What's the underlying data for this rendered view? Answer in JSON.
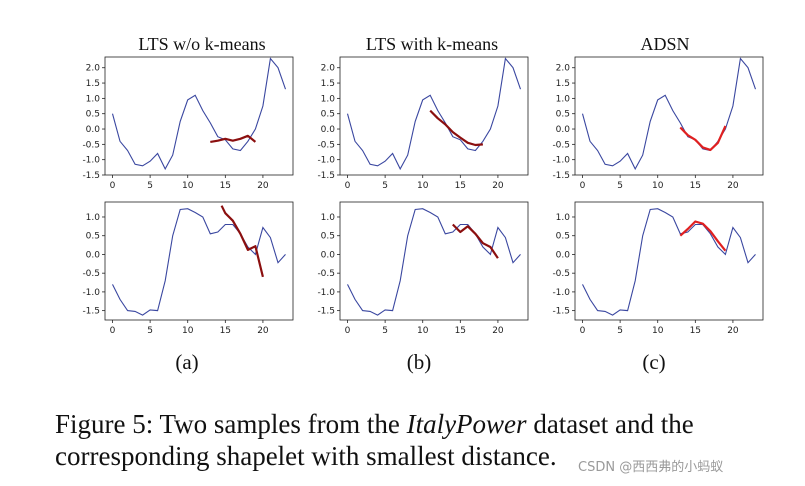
{
  "figure": {
    "caption_prefix": "Figure 5: Two samples from the ",
    "caption_dataset": "ItalyPower",
    "caption_suffix": " dataset and the corresponding shapelet with smallest distance.",
    "watermark": "CSDN @西西弗的小蚂蚁"
  },
  "colors": {
    "series": "#3a47a0",
    "shapelet_dark": "#8b0f0f",
    "shapelet_red": "#e02020"
  },
  "columns": [
    {
      "title": "LTS w/o k-means",
      "label": "(a)"
    },
    {
      "title": "LTS with k-means",
      "label": "(b)"
    },
    {
      "title": "ADSN",
      "label": "(c)"
    }
  ],
  "chart_data": [
    {
      "type": "line",
      "row": 0,
      "col": 0,
      "title": "LTS w/o k-means",
      "x": [
        0,
        1,
        2,
        3,
        4,
        5,
        6,
        7,
        8,
        9,
        10,
        11,
        12,
        13,
        14,
        15,
        16,
        17,
        18,
        19,
        20,
        21,
        22,
        23
      ],
      "series": [
        {
          "values": [
            0.5,
            -0.4,
            -0.7,
            -1.15,
            -1.2,
            -1.05,
            -0.8,
            -1.3,
            -0.85,
            0.25,
            0.95,
            1.1,
            0.6,
            0.2,
            -0.25,
            -0.35,
            -0.65,
            -0.7,
            -0.4,
            0.0,
            0.75,
            2.3,
            2.0,
            1.3
          ]
        }
      ],
      "shapelet": {
        "color": "shapelet_dark",
        "x": [
          13,
          14,
          15,
          16,
          17,
          18,
          19
        ],
        "values": [
          -0.42,
          -0.38,
          -0.32,
          -0.38,
          -0.32,
          -0.22,
          -0.42
        ]
      },
      "ylim": [
        -1.5,
        2.35
      ],
      "yticks": [
        -1.5,
        -1.0,
        -0.5,
        0.0,
        0.5,
        1.0,
        1.5,
        2.0
      ],
      "xticks": [
        0,
        5,
        10,
        15,
        20
      ],
      "xlim": [
        -1,
        24
      ]
    },
    {
      "type": "line",
      "row": 0,
      "col": 1,
      "title": "LTS with k-means",
      "x": [
        0,
        1,
        2,
        3,
        4,
        5,
        6,
        7,
        8,
        9,
        10,
        11,
        12,
        13,
        14,
        15,
        16,
        17,
        18,
        19,
        20,
        21,
        22,
        23
      ],
      "series": [
        {
          "values": [
            0.5,
            -0.4,
            -0.7,
            -1.15,
            -1.2,
            -1.05,
            -0.8,
            -1.3,
            -0.85,
            0.25,
            0.95,
            1.1,
            0.6,
            0.2,
            -0.25,
            -0.35,
            -0.65,
            -0.7,
            -0.4,
            0.0,
            0.75,
            2.3,
            2.0,
            1.3
          ]
        }
      ],
      "shapelet": {
        "color": "shapelet_dark",
        "x": [
          11,
          12,
          13,
          14,
          15,
          16,
          17,
          18
        ],
        "values": [
          0.6,
          0.35,
          0.15,
          -0.1,
          -0.28,
          -0.45,
          -0.52,
          -0.5
        ]
      },
      "ylim": [
        -1.5,
        2.35
      ],
      "yticks": [
        -1.5,
        -1.0,
        -0.5,
        0.0,
        0.5,
        1.0,
        1.5,
        2.0
      ],
      "xticks": [
        0,
        5,
        10,
        15,
        20
      ],
      "xlim": [
        -1,
        24
      ]
    },
    {
      "type": "line",
      "row": 0,
      "col": 2,
      "title": "ADSN",
      "x": [
        0,
        1,
        2,
        3,
        4,
        5,
        6,
        7,
        8,
        9,
        10,
        11,
        12,
        13,
        14,
        15,
        16,
        17,
        18,
        19,
        20,
        21,
        22,
        23
      ],
      "series": [
        {
          "values": [
            0.5,
            -0.4,
            -0.7,
            -1.15,
            -1.2,
            -1.05,
            -0.8,
            -1.3,
            -0.85,
            0.25,
            0.95,
            1.1,
            0.6,
            0.2,
            -0.25,
            -0.35,
            -0.65,
            -0.7,
            -0.4,
            0.0,
            0.75,
            2.3,
            2.0,
            1.3
          ]
        }
      ],
      "shapelet": {
        "color": "shapelet_red",
        "x": [
          13,
          14,
          15,
          16,
          17,
          18,
          19
        ],
        "values": [
          0.05,
          -0.2,
          -0.35,
          -0.6,
          -0.68,
          -0.45,
          0.1
        ]
      },
      "ylim": [
        -1.5,
        2.35
      ],
      "yticks": [
        -1.5,
        -1.0,
        -0.5,
        0.0,
        0.5,
        1.0,
        1.5,
        2.0
      ],
      "xticks": [
        0,
        5,
        10,
        15,
        20
      ],
      "xlim": [
        -1,
        24
      ]
    },
    {
      "type": "line",
      "row": 1,
      "col": 0,
      "x": [
        0,
        1,
        2,
        3,
        4,
        5,
        6,
        7,
        8,
        9,
        10,
        11,
        12,
        13,
        14,
        15,
        16,
        17,
        18,
        19,
        20,
        21,
        22,
        23
      ],
      "series": [
        {
          "values": [
            -0.8,
            -1.2,
            -1.5,
            -1.52,
            -1.62,
            -1.48,
            -1.5,
            -0.7,
            0.5,
            1.2,
            1.22,
            1.12,
            1.0,
            0.55,
            0.6,
            0.8,
            0.8,
            0.55,
            0.2,
            0.0,
            0.72,
            0.45,
            -0.22,
            0.0
          ]
        }
      ],
      "shapelet": {
        "color": "shapelet_dark",
        "x": [
          14.5,
          15,
          16,
          17,
          18,
          19,
          20
        ],
        "values": [
          1.3,
          1.1,
          0.9,
          0.55,
          0.12,
          0.22,
          -0.6
        ]
      },
      "ylim": [
        -1.75,
        1.4
      ],
      "yticks": [
        -1.5,
        -1.0,
        -0.5,
        0.0,
        0.5,
        1.0
      ],
      "xticks": [
        0,
        5,
        10,
        15,
        20
      ],
      "xlim": [
        -1,
        24
      ]
    },
    {
      "type": "line",
      "row": 1,
      "col": 1,
      "x": [
        0,
        1,
        2,
        3,
        4,
        5,
        6,
        7,
        8,
        9,
        10,
        11,
        12,
        13,
        14,
        15,
        16,
        17,
        18,
        19,
        20,
        21,
        22,
        23
      ],
      "series": [
        {
          "values": [
            -0.8,
            -1.2,
            -1.5,
            -1.52,
            -1.62,
            -1.48,
            -1.5,
            -0.7,
            0.5,
            1.2,
            1.22,
            1.12,
            1.0,
            0.55,
            0.6,
            0.8,
            0.8,
            0.55,
            0.2,
            0.0,
            0.72,
            0.45,
            -0.22,
            0.0
          ]
        }
      ],
      "shapelet": {
        "color": "shapelet_dark",
        "x": [
          14,
          15,
          16,
          17,
          18,
          19,
          20
        ],
        "values": [
          0.8,
          0.6,
          0.75,
          0.55,
          0.3,
          0.2,
          -0.1
        ]
      },
      "ylim": [
        -1.75,
        1.4
      ],
      "yticks": [
        -1.5,
        -1.0,
        -0.5,
        0.0,
        0.5,
        1.0
      ],
      "xticks": [
        0,
        5,
        10,
        15,
        20
      ],
      "xlim": [
        -1,
        24
      ]
    },
    {
      "type": "line",
      "row": 1,
      "col": 2,
      "x": [
        0,
        1,
        2,
        3,
        4,
        5,
        6,
        7,
        8,
        9,
        10,
        11,
        12,
        13,
        14,
        15,
        16,
        17,
        18,
        19,
        20,
        21,
        22,
        23
      ],
      "series": [
        {
          "values": [
            -0.8,
            -1.2,
            -1.5,
            -1.52,
            -1.62,
            -1.48,
            -1.5,
            -0.7,
            0.5,
            1.2,
            1.22,
            1.12,
            1.0,
            0.55,
            0.6,
            0.8,
            0.8,
            0.55,
            0.2,
            0.0,
            0.72,
            0.45,
            -0.22,
            0.0
          ]
        }
      ],
      "shapelet": {
        "color": "shapelet_red",
        "x": [
          13,
          14,
          15,
          16,
          17,
          18,
          19
        ],
        "values": [
          0.5,
          0.68,
          0.88,
          0.82,
          0.62,
          0.35,
          0.1
        ]
      },
      "ylim": [
        -1.75,
        1.4
      ],
      "yticks": [
        -1.5,
        -1.0,
        -0.5,
        0.0,
        0.5,
        1.0
      ],
      "xticks": [
        0,
        5,
        10,
        15,
        20
      ],
      "xlim": [
        -1,
        24
      ]
    }
  ]
}
